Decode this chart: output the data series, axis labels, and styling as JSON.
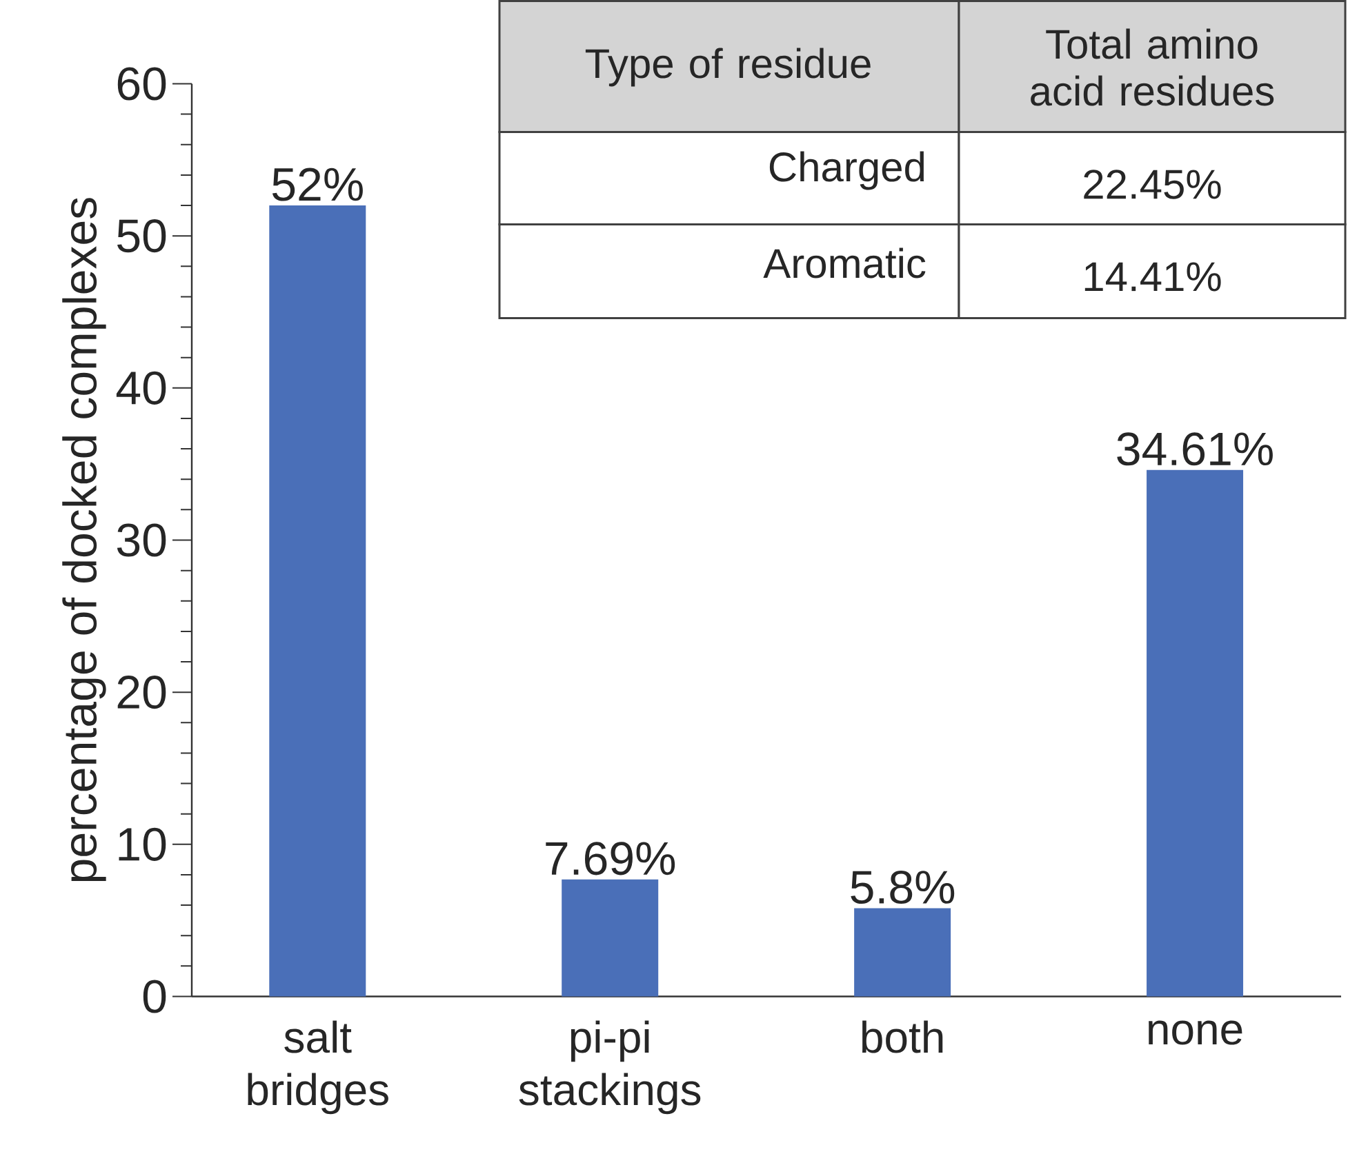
{
  "chart_data": [
    {
      "type": "bar",
      "ylabel": "percentage of docked complexes",
      "categories": [
        "salt bridges",
        "pi-pi stackings",
        "both",
        "none"
      ],
      "values": [
        52,
        7.69,
        5.8,
        34.61
      ],
      "value_labels": [
        "52%",
        "7.69%",
        "5.8%",
        "34.61%"
      ],
      "color": "#4a6fb8",
      "ylim": [
        0,
        60
      ],
      "yticks": [
        0,
        10,
        20,
        30,
        40,
        50,
        60
      ],
      "grid": false
    },
    {
      "type": "other",
      "annotations": [
        "Type of residue",
        "Total amino acid residues",
        "Charged",
        "22.45%",
        "Aromatic",
        "14.41%"
      ]
    }
  ]
}
